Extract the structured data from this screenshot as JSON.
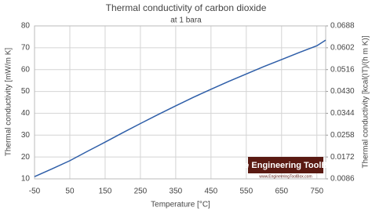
{
  "chart_data": {
    "type": "line",
    "title": "Thermal conductivity of carbon dioxide",
    "subtitle": "at 1 bara",
    "x_label": "Temperature [°C]",
    "y_label": "Thermal conductivity [mW/m K]",
    "y2_label": "Thermal conductivity [kcal(IT)/(h m K)]",
    "annotations": [
      "The Engineering ToolBox",
      "www.EngineeringToolBox.com"
    ],
    "x": [
      -50,
      0,
      50,
      100,
      150,
      200,
      250,
      300,
      350,
      400,
      450,
      500,
      550,
      600,
      650,
      700,
      750,
      775
    ],
    "series": [
      {
        "name": "Thermal conductivity",
        "color": "#2e5ea8",
        "values": [
          11.0,
          14.6,
          18.3,
          22.6,
          26.8,
          31.1,
          35.3,
          39.4,
          43.4,
          47.3,
          51.0,
          54.6,
          58.0,
          61.4,
          64.6,
          67.8,
          70.9,
          73.5
        ]
      }
    ],
    "xlim": [
      -50,
      775
    ],
    "xticks": [
      -50,
      50,
      150,
      250,
      350,
      450,
      550,
      650,
      750
    ],
    "ylim": [
      10,
      80
    ],
    "yticks": [
      10,
      20,
      30,
      40,
      50,
      60,
      70,
      80
    ],
    "y2lim": [
      0.0086,
      0.0688
    ],
    "y2ticks": [
      0.0086,
      0.0172,
      0.0258,
      0.0344,
      {
        "value": 0.043,
        "label": "0.0430"
      },
      0.0516,
      0.0602,
      0.0688
    ],
    "grid": true
  }
}
